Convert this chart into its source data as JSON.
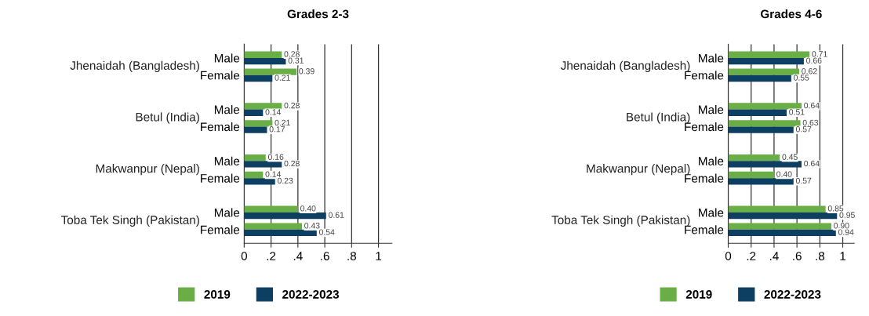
{
  "chart_data": [
    {
      "type": "bar",
      "orientation": "horizontal",
      "title": "Grades 2-3",
      "categories": [
        "Male",
        "Female",
        "Male",
        "Female",
        "Male",
        "Female",
        "Male",
        "Female"
      ],
      "annotations": [
        "Jhenaidah (Bangladesh)",
        "Betul (India)",
        "Makwanpur (Nepal)",
        "Toba Tek Singh (Pakistan)"
      ],
      "series": [
        {
          "name": "2019",
          "color": "#6aaf45",
          "values": [
            0.28,
            0.39,
            0.28,
            0.21,
            0.16,
            0.14,
            0.4,
            0.43
          ],
          "value_labels": [
            "0.28",
            "0.39",
            "0.28",
            "0.21",
            "0.16",
            "0.14",
            "0.40",
            "0.43"
          ]
        },
        {
          "name": "2022-2023",
          "color": "#0d3f63",
          "values": [
            0.31,
            0.21,
            0.14,
            0.17,
            0.28,
            0.23,
            0.61,
            0.54
          ],
          "value_labels": [
            "0.31",
            "0.21",
            "0.14",
            "0.17",
            "0.28",
            "0.23",
            "0.61",
            "0.54"
          ]
        }
      ],
      "xlim": [
        0,
        1.1
      ],
      "xticks": [
        0,
        {
          "value": 0.2,
          "label": ".2"
        },
        {
          "value": 0.4,
          "label": ".4"
        },
        {
          "value": 0.6,
          "label": ".6"
        },
        {
          "value": 0.8,
          "label": ".8"
        },
        1
      ],
      "grid": "x",
      "legend": "bottom"
    },
    {
      "type": "bar",
      "orientation": "horizontal",
      "title": "Grades 4-6",
      "categories": [
        "Male",
        "Female",
        "Male",
        "Female",
        "Male",
        "Female",
        "Male",
        "Female"
      ],
      "annotations": [
        "Jhenaidah (Bangladesh)",
        "Betul (India)",
        "Makwanpur (Nepal)",
        "Toba Tek Singh (Pakistan)"
      ],
      "series": [
        {
          "name": "2019",
          "color": "#6aaf45",
          "values": [
            0.71,
            0.62,
            0.64,
            0.63,
            0.45,
            0.4,
            0.85,
            0.9
          ],
          "value_labels": [
            "0.71",
            "0.62",
            "0.64",
            "0.63",
            "0.45",
            "0.40",
            "0.85",
            "0.90"
          ]
        },
        {
          "name": "2022-2023",
          "color": "#0d3f63",
          "values": [
            0.66,
            0.55,
            0.51,
            0.57,
            0.64,
            0.57,
            0.95,
            0.94
          ],
          "value_labels": [
            "0.66",
            "0.55",
            "0.51",
            "0.57",
            "0.64",
            "0.57",
            "0.95",
            "0.94"
          ]
        }
      ],
      "xlim": [
        0,
        1.1
      ],
      "xticks": [
        0,
        {
          "value": 0.2,
          "label": ".2"
        },
        {
          "value": 0.4,
          "label": ".4"
        },
        {
          "value": 0.6,
          "label": ".6"
        },
        {
          "value": 0.8,
          "label": ".8"
        },
        1
      ],
      "grid": "x",
      "legend": "bottom"
    }
  ]
}
